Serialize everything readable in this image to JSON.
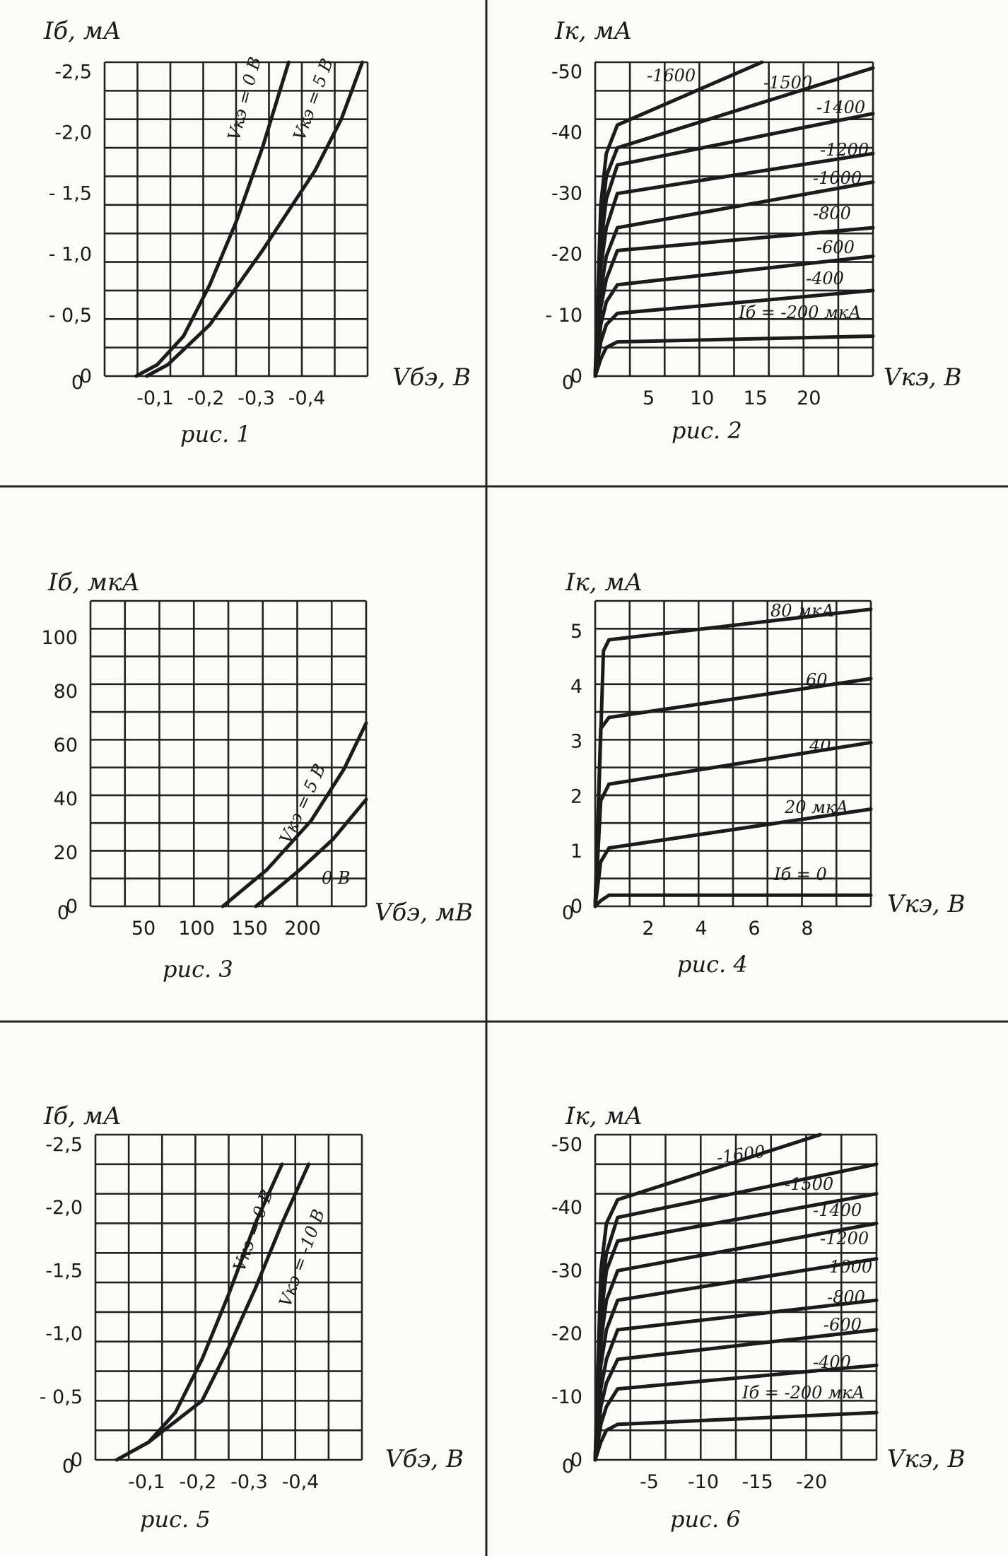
{
  "charts": [
    {
      "caption": "рис. 1",
      "ylabel": "Iб, мА",
      "xlabel": "Vбэ, В",
      "yticks": [
        "-2,5",
        "-2,0",
        "- 1,5",
        "- 1,0",
        "- 0,5",
        "0"
      ],
      "xticks": [
        "-0,1",
        "-0,2",
        "-0,3",
        "-0,4"
      ],
      "curve_labels": [
        "Vкэ = 0 В",
        "Vкэ = 5 В"
      ]
    },
    {
      "caption": "рис. 2",
      "ylabel": "Iк, мА",
      "xlabel": "Vкэ, В",
      "yticks": [
        "-50",
        "-40",
        "-30",
        "-20",
        "- 10",
        "0"
      ],
      "xticks": [
        "5",
        "10",
        "15",
        "20"
      ],
      "curve_labels": [
        "-1600",
        "-1500",
        "-1400",
        "-1200",
        "-1000",
        "-800",
        "-600",
        "-400",
        "Iб = -200 мкА"
      ]
    },
    {
      "caption": "рис. 3",
      "ylabel": "Iб, мкА",
      "xlabel": "Vбэ, мВ",
      "yticks": [
        "100",
        "80",
        "60",
        "40",
        "20",
        "0"
      ],
      "xticks": [
        "50",
        "100",
        "150",
        "200"
      ],
      "curve_labels": [
        "Vкэ = 5 В",
        "0 В"
      ]
    },
    {
      "caption": "рис. 4",
      "ylabel": "Iк, мА",
      "xlabel": "Vкэ, В",
      "yticks": [
        "5",
        "4",
        "3",
        "2",
        "1",
        "0"
      ],
      "xticks": [
        "2",
        "4",
        "6",
        "8"
      ],
      "curve_labels": [
        "80 мкА",
        "60",
        "40",
        "20 мкА",
        "Iб = 0"
      ]
    },
    {
      "caption": "рис. 5",
      "ylabel": "Iб, мА",
      "xlabel": "Vбэ, В",
      "yticks": [
        "-2,5",
        "-2,0",
        "-1,5",
        "-1,0",
        "- 0,5",
        "0"
      ],
      "xticks": [
        "-0,1",
        "-0,2",
        "-0,3",
        "-0,4"
      ],
      "curve_labels": [
        "Vкэ = 0 В",
        "Vкэ = -10 В"
      ]
    },
    {
      "caption": "рис. 6",
      "ylabel": "Iк, мА",
      "xlabel": "Vкэ, В",
      "yticks": [
        "-50",
        "-40",
        "-30",
        "-20",
        "-10",
        "0"
      ],
      "xticks": [
        "-5",
        "-10",
        "-15",
        "-20"
      ],
      "curve_labels": [
        "-1600",
        "-1500",
        "-1400",
        "-1200",
        "-1000",
        "-800",
        "-600",
        "-400",
        "Iб = -200 мкА"
      ]
    }
  ],
  "chart_data": [
    {
      "type": "line",
      "title": "рис. 1",
      "xlabel": "Vбэ, В",
      "ylabel": "Iб, мА",
      "xlim": [
        0,
        -0.5
      ],
      "ylim": [
        0,
        -2.75
      ],
      "series": [
        {
          "name": "Vкэ = 0 В",
          "x": [
            -0.06,
            -0.1,
            -0.15,
            -0.2,
            -0.25,
            -0.3,
            -0.33,
            -0.35
          ],
          "y": [
            0,
            -0.1,
            -0.35,
            -0.8,
            -1.35,
            -2.0,
            -2.45,
            -2.75
          ]
        },
        {
          "name": "Vкэ = 5 В",
          "x": [
            -0.08,
            -0.12,
            -0.2,
            -0.3,
            -0.4,
            -0.45,
            -0.49
          ],
          "y": [
            0,
            -0.1,
            -0.45,
            -1.1,
            -1.8,
            -2.25,
            -2.75
          ]
        }
      ]
    },
    {
      "type": "line",
      "title": "рис. 2",
      "xlabel": "Vкэ, В",
      "ylabel": "Iк, мА",
      "xlim": [
        0,
        25
      ],
      "ylim": [
        0,
        -55
      ],
      "series": [
        {
          "name": "-200 мкА",
          "x": [
            0,
            0.5,
            1,
            2,
            25
          ],
          "y": [
            0,
            -3,
            -5,
            -6,
            -7
          ]
        },
        {
          "name": "-400",
          "x": [
            0,
            0.5,
            1,
            2,
            25
          ],
          "y": [
            0,
            -6,
            -9,
            -11,
            -15
          ]
        },
        {
          "name": "-600",
          "x": [
            0,
            0.5,
            1,
            2,
            25
          ],
          "y": [
            0,
            -9,
            -13,
            -16,
            -21
          ]
        },
        {
          "name": "-800",
          "x": [
            0,
            0.5,
            1,
            2,
            25
          ],
          "y": [
            0,
            -12,
            -17,
            -22,
            -26
          ]
        },
        {
          "name": "-1000",
          "x": [
            0,
            0.5,
            1,
            2,
            25
          ],
          "y": [
            0,
            -15,
            -21,
            -26,
            -34
          ]
        },
        {
          "name": "-1200",
          "x": [
            0,
            0.5,
            1,
            2,
            25
          ],
          "y": [
            0,
            -19,
            -26,
            -32,
            -39
          ]
        },
        {
          "name": "-1400",
          "x": [
            0,
            0.5,
            1,
            2,
            25
          ],
          "y": [
            0,
            -23,
            -31,
            -37,
            -46
          ]
        },
        {
          "name": "-1500",
          "x": [
            0,
            0.5,
            1,
            2,
            25
          ],
          "y": [
            0,
            -26,
            -35,
            -40,
            -54
          ]
        },
        {
          "name": "-1600",
          "x": [
            0,
            0.5,
            1,
            2,
            15
          ],
          "y": [
            0,
            -30,
            -39,
            -44,
            -55
          ]
        }
      ]
    },
    {
      "type": "line",
      "title": "рис. 3",
      "xlabel": "Vбэ, мВ",
      "ylabel": "Iб, мкА",
      "xlim": [
        0,
        250
      ],
      "ylim": [
        0,
        100
      ],
      "series": [
        {
          "name": "Vкэ = 5 В",
          "x": [
            120,
            160,
            200,
            230,
            250
          ],
          "y": [
            0,
            12,
            28,
            45,
            60
          ]
        },
        {
          "name": "0 В",
          "x": [
            150,
            190,
            220,
            250
          ],
          "y": [
            0,
            12,
            22,
            35
          ]
        }
      ]
    },
    {
      "type": "line",
      "title": "рис. 4",
      "xlabel": "Vкэ, В",
      "ylabel": "Iк, мА",
      "xlim": [
        0,
        10
      ],
      "ylim": [
        0,
        5.5
      ],
      "series": [
        {
          "name": "Iб = 0",
          "x": [
            0,
            0.2,
            0.5,
            10
          ],
          "y": [
            0,
            0.1,
            0.2,
            0.2
          ]
        },
        {
          "name": "20 мкА",
          "x": [
            0,
            0.2,
            0.5,
            10
          ],
          "y": [
            0,
            0.8,
            1.05,
            1.75
          ]
        },
        {
          "name": "40",
          "x": [
            0,
            0.2,
            0.5,
            10
          ],
          "y": [
            0,
            1.9,
            2.2,
            2.95
          ]
        },
        {
          "name": "60",
          "x": [
            0,
            0.2,
            0.5,
            10
          ],
          "y": [
            0,
            3.2,
            3.4,
            4.1
          ]
        },
        {
          "name": "80 мкА",
          "x": [
            0,
            0.3,
            0.5,
            10
          ],
          "y": [
            0,
            4.6,
            4.8,
            5.35
          ]
        }
      ]
    },
    {
      "type": "line",
      "title": "рис. 5",
      "xlabel": "Vбэ, В",
      "ylabel": "Iб, мА",
      "xlim": [
        0,
        -0.5
      ],
      "ylim": [
        0,
        -2.75
      ],
      "series": [
        {
          "name": "Vкэ = 0 В",
          "x": [
            -0.04,
            -0.1,
            -0.15,
            -0.2,
            -0.25,
            -0.3,
            -0.35
          ],
          "y": [
            0,
            -0.15,
            -0.4,
            -0.85,
            -1.4,
            -2.0,
            -2.5
          ]
        },
        {
          "name": "Vкэ = -10 В",
          "x": [
            -0.04,
            -0.1,
            -0.2,
            -0.25,
            -0.3,
            -0.35,
            -0.4
          ],
          "y": [
            0,
            -0.15,
            -0.5,
            -0.95,
            -1.45,
            -2.0,
            -2.5
          ]
        }
      ]
    },
    {
      "type": "line",
      "title": "рис. 6",
      "xlabel": "Vкэ, В",
      "ylabel": "Iк, мА",
      "xlim": [
        0,
        -25
      ],
      "ylim": [
        0,
        -55
      ],
      "series": [
        {
          "name": "-200 мкА",
          "x": [
            0,
            -0.5,
            -1,
            -2,
            -25
          ],
          "y": [
            0,
            -3,
            -5,
            -6,
            -8
          ]
        },
        {
          "name": "-400",
          "x": [
            0,
            -0.5,
            -1,
            -2,
            -25
          ],
          "y": [
            0,
            -6,
            -9,
            -12,
            -16
          ]
        },
        {
          "name": "-600",
          "x": [
            0,
            -0.5,
            -1,
            -2,
            -25
          ],
          "y": [
            0,
            -9,
            -13,
            -17,
            -22
          ]
        },
        {
          "name": "-800",
          "x": [
            0,
            -0.5,
            -1,
            -2,
            -25
          ],
          "y": [
            0,
            -12,
            -17,
            -22,
            -27
          ]
        },
        {
          "name": "-1000",
          "x": [
            0,
            -0.5,
            -1,
            -2,
            -25
          ],
          "y": [
            0,
            -16,
            -22,
            -27,
            -34
          ]
        },
        {
          "name": "-1200",
          "x": [
            0,
            -0.5,
            -1,
            -2,
            -25
          ],
          "y": [
            0,
            -20,
            -27,
            -32,
            -40
          ]
        },
        {
          "name": "-1400",
          "x": [
            0,
            -0.5,
            -1,
            -2,
            -25
          ],
          "y": [
            0,
            -24,
            -32,
            -37,
            -45
          ]
        },
        {
          "name": "-1500",
          "x": [
            0,
            -0.5,
            -1,
            -2,
            -25
          ],
          "y": [
            0,
            -27,
            -35,
            -41,
            -50
          ]
        },
        {
          "name": "-1600",
          "x": [
            0,
            -0.5,
            -1,
            -2,
            -20
          ],
          "y": [
            0,
            -32,
            -40,
            -44,
            -55
          ]
        }
      ]
    }
  ]
}
